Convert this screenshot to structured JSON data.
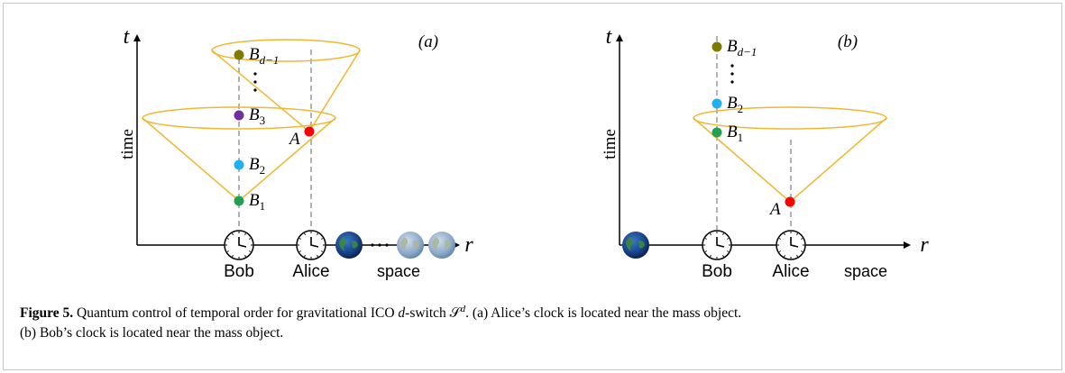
{
  "figure": {
    "panels": [
      {
        "label": "(a)",
        "axis_t": "t",
        "axis_r": "r",
        "axis_label": "time",
        "space": "space",
        "clocks": [
          "Bob",
          "Alice"
        ],
        "points": [
          {
            "base": "B",
            "sub": "d−1",
            "color": "#7f7a00"
          },
          {
            "base": "B",
            "sub": "3",
            "color": "#7030a0"
          },
          {
            "base": "A",
            "color": "#ff0000"
          },
          {
            "base": "B",
            "sub": "2",
            "color": "#20b0f0"
          },
          {
            "base": "B",
            "sub": "1",
            "color": "#20a050"
          }
        ]
      },
      {
        "label": "(b)",
        "axis_t": "t",
        "axis_r": "r",
        "axis_label": "time",
        "space": "space",
        "clocks": [
          "Bob",
          "Alice"
        ],
        "points": [
          {
            "base": "B",
            "sub": "d−1",
            "color": "#7f7a00"
          },
          {
            "base": "B",
            "sub": "2",
            "color": "#20b0f0"
          },
          {
            "base": "B",
            "sub": "1",
            "color": "#20a050"
          },
          {
            "base": "A",
            "color": "#ff0000"
          }
        ]
      }
    ],
    "caption": {
      "label": "Figure 5.",
      "parts": [
        " Quantum control of temporal order for gravitational ICO ",
        "d",
        "-switch ",
        "𝒮",
        "d",
        ". (a) Alice’s clock is located near the mass object."
      ],
      "line2": "(b) Bob’s clock is located near the mass object."
    }
  }
}
